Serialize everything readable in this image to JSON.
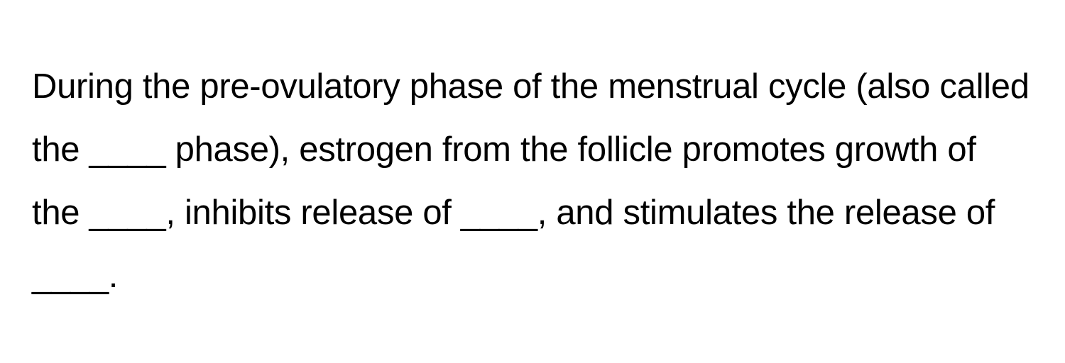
{
  "question": {
    "text": "During the pre-ovulatory phase of the menstrual cycle (also called the ____ phase), estrogen from the follicle promotes growth of the ____, inhibits release of ____, and stimulates the release of ____.",
    "font_size": 49,
    "line_height": 1.82,
    "color": "#000000",
    "background_color": "#ffffff",
    "font_weight": 400
  }
}
